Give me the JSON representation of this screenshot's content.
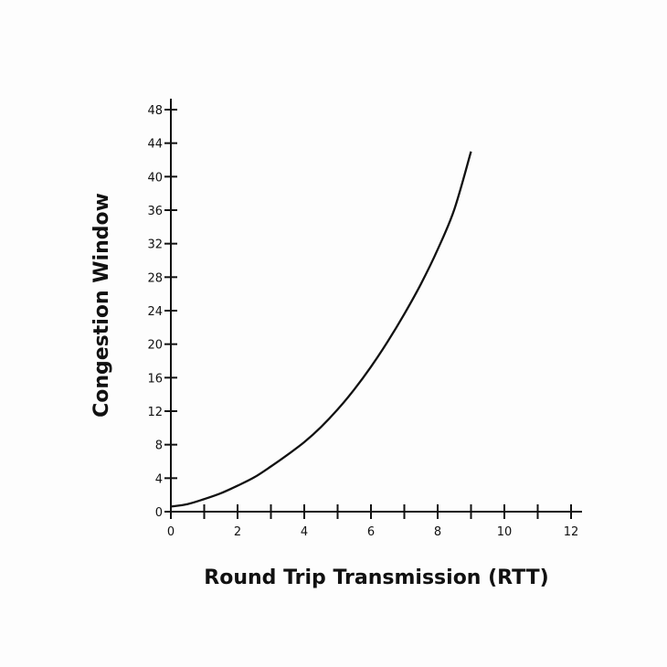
{
  "chart_data": {
    "type": "line",
    "title": "",
    "xlabel": "Round Trip Transmission (RTT)",
    "ylabel": "Congestion Window",
    "xlim": [
      0,
      12
    ],
    "ylim": [
      0,
      48
    ],
    "x_ticks": [
      0,
      1,
      2,
      3,
      4,
      5,
      6,
      7,
      8,
      9,
      10,
      11,
      12
    ],
    "x_tick_labels": [
      "0",
      "",
      "2",
      "",
      "4",
      "",
      "6",
      "",
      "8",
      "",
      "10",
      "",
      "12"
    ],
    "y_ticks": [
      0,
      4,
      8,
      12,
      16,
      20,
      24,
      28,
      32,
      36,
      40,
      44,
      48
    ],
    "y_tick_labels": [
      "0",
      "4",
      "8",
      "12",
      "16",
      "20",
      "24",
      "28",
      "32",
      "36",
      "40",
      "44",
      "48"
    ],
    "grid": false,
    "series": [
      {
        "x": [
          0,
          0.5,
          1,
          1.5,
          2,
          2.5,
          3,
          3.5,
          4,
          4.5,
          5,
          5.5,
          6,
          6.5,
          7,
          7.5,
          8,
          8.5,
          9
        ],
        "values": [
          0.6,
          0.9,
          1.5,
          2.2,
          3.1,
          4.1,
          5.4,
          6.8,
          8.3,
          10.1,
          12.2,
          14.6,
          17.3,
          20.3,
          23.6,
          27.2,
          31.3,
          36.1,
          43.0
        ],
        "color": "#111111"
      }
    ]
  }
}
